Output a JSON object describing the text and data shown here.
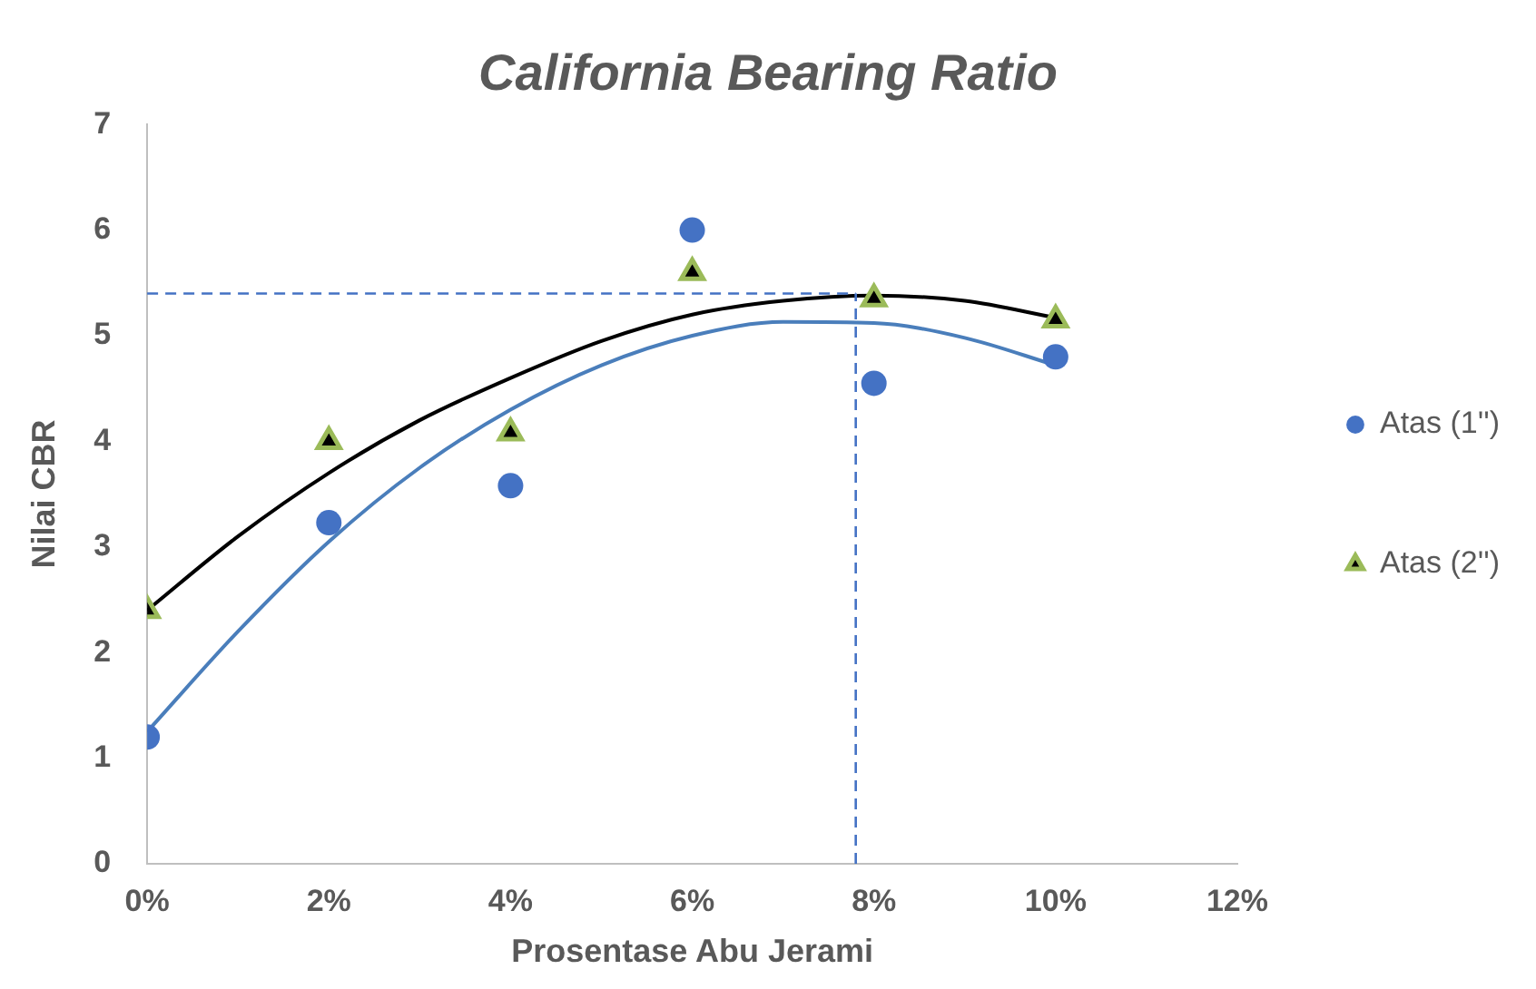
{
  "chart_data": {
    "type": "scatter",
    "title": "California Bearing Ratio",
    "xlabel": "Prosentase Abu Jerami",
    "ylabel": "Nilai CBR",
    "xlim": [
      0,
      12
    ],
    "xticks": [
      {
        "value": 0,
        "label": "0%"
      },
      {
        "value": 2,
        "label": "2%"
      },
      {
        "value": 4,
        "label": "4%"
      },
      {
        "value": 6,
        "label": "6%"
      },
      {
        "value": 8,
        "label": "8%"
      },
      {
        "value": 10,
        "label": "10%"
      },
      {
        "value": 12,
        "label": "12%"
      }
    ],
    "ylim": [
      0,
      7
    ],
    "yticks": [
      0,
      1,
      2,
      3,
      4,
      5,
      6,
      7
    ],
    "grid": false,
    "legend": "right",
    "series": [
      {
        "name": "Atas (1'')",
        "marker": "circle",
        "color": "#4472c4",
        "x": [
          0,
          2,
          4,
          6,
          8,
          10
        ],
        "values": [
          1.2,
          3.23,
          3.58,
          6.0,
          4.55,
          4.8
        ]
      },
      {
        "name": "Atas (2'')",
        "marker": "triangle",
        "color": "#9bbb59",
        "x": [
          0,
          2,
          4,
          6,
          8,
          10
        ],
        "values": [
          2.4,
          4.0,
          4.08,
          5.6,
          5.35,
          5.15
        ]
      },
      {
        "type": "line",
        "marker": "none",
        "color": "#4a7ebb",
        "x": [
          0,
          1,
          2,
          3,
          4,
          5,
          6,
          7,
          8,
          9,
          10
        ],
        "values": [
          1.25,
          2.2,
          3.05,
          3.75,
          4.3,
          4.72,
          5.0,
          5.13,
          5.12,
          4.98,
          4.72
        ]
      },
      {
        "type": "line",
        "marker": "none",
        "color": "#000000",
        "x": [
          0,
          1,
          2,
          3,
          4,
          5,
          6,
          7,
          8,
          9,
          10
        ],
        "values": [
          2.4,
          3.1,
          3.7,
          4.2,
          4.6,
          4.95,
          5.2,
          5.33,
          5.38,
          5.33,
          5.17
        ]
      }
    ],
    "ref_lines": [
      {
        "axis": "y",
        "value": 5.4,
        "color": "#4472c4",
        "line_style": "dashed"
      },
      {
        "axis": "x",
        "value": 7.8,
        "color": "#4472c4",
        "line_style": "dashed"
      }
    ]
  }
}
